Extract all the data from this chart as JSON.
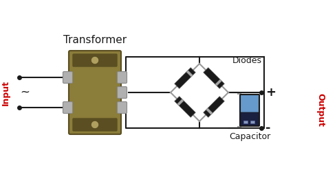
{
  "bg_color": "#ffffff",
  "transformer_color_main": "#8B7D3A",
  "transformer_color_dark": "#5A4E22",
  "transformer_color_light": "#B0A060",
  "wire_color": "#1a1a1a",
  "diode_body_color": "#1a1a1a",
  "diode_lead_color": "#999999",
  "capacitor_body_color": "#6699CC",
  "capacitor_dark_color": "#1a2040",
  "label_transformer": "Transformer",
  "label_input": "Input",
  "label_diodes": "Diodes",
  "label_capacitor": "Capacitor",
  "label_output": "Output",
  "label_plus": "+",
  "label_minus": "-",
  "input_color": "#cc0000",
  "output_color": "#cc0000",
  "screw_color": "#b0b0b0",
  "screw_edge": "#888888"
}
